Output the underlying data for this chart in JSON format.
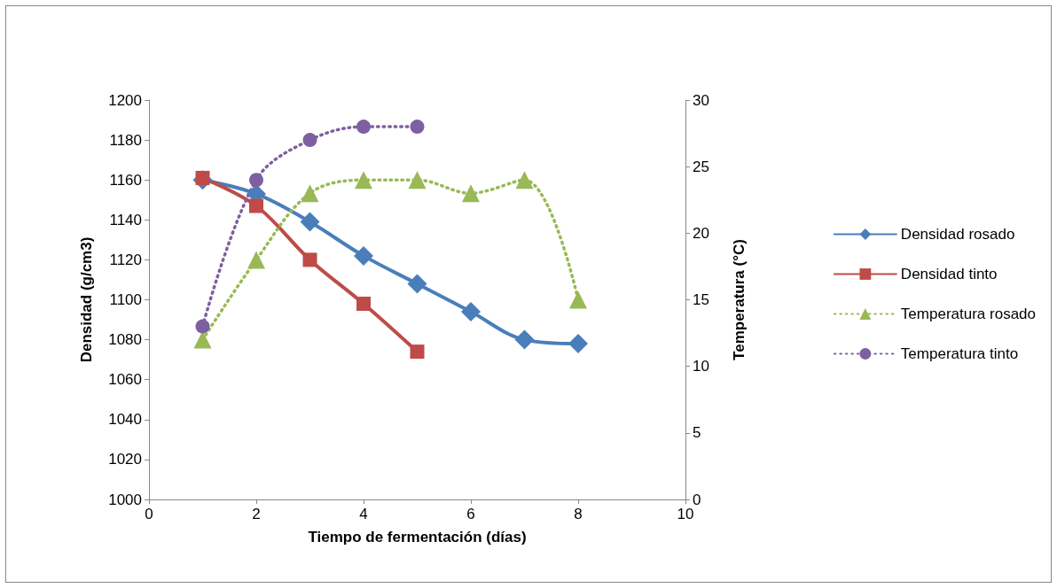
{
  "chart_data": {
    "type": "line",
    "xlabel": "Tiempo de fermentación (días)",
    "ylabel": "Densidad (g/cm3)",
    "y2label": "Temperatura (°C)",
    "xlim": [
      0,
      10
    ],
    "xticks": [
      0,
      2,
      4,
      6,
      8,
      10
    ],
    "ylim": [
      1000,
      1200
    ],
    "yticks": [
      1000,
      1020,
      1040,
      1060,
      1080,
      1100,
      1120,
      1140,
      1160,
      1180,
      1200
    ],
    "y2lim": [
      0,
      30
    ],
    "y2ticks": [
      0,
      5,
      10,
      15,
      20,
      25,
      30
    ],
    "grid": false,
    "legend": "right",
    "series": [
      {
        "name": "Densidad rosado",
        "color": "#4a7ebb",
        "marker": "diamond",
        "line_style": "solid",
        "x": [
          1,
          2,
          3,
          4,
          5,
          6,
          7,
          8
        ],
        "values": [
          1160,
          1153,
          1139,
          1122,
          1108,
          1094,
          1080,
          1078
        ]
      },
      {
        "name": "Densidad tinto",
        "color": "#be4b48",
        "marker": "square",
        "line_style": "solid",
        "x": [
          1,
          2,
          3,
          4,
          5
        ],
        "values": [
          1161,
          1147,
          1120,
          1098,
          1074
        ]
      },
      {
        "name": "Temperatura rosado",
        "color": "#98b954",
        "marker": "triangle",
        "line_style": "dotted",
        "axis": "y2",
        "x": [
          1,
          2,
          3,
          4,
          5,
          6,
          7,
          8
        ],
        "values": [
          12,
          18,
          23,
          24,
          24,
          23,
          24,
          15
        ]
      },
      {
        "name": "Temperatura tinto",
        "color": "#7d60a0",
        "marker": "circle",
        "line_style": "dotted",
        "axis": "y2",
        "x": [
          1,
          2,
          3,
          4,
          5
        ],
        "values": [
          13,
          24,
          27,
          28,
          28
        ]
      }
    ]
  }
}
